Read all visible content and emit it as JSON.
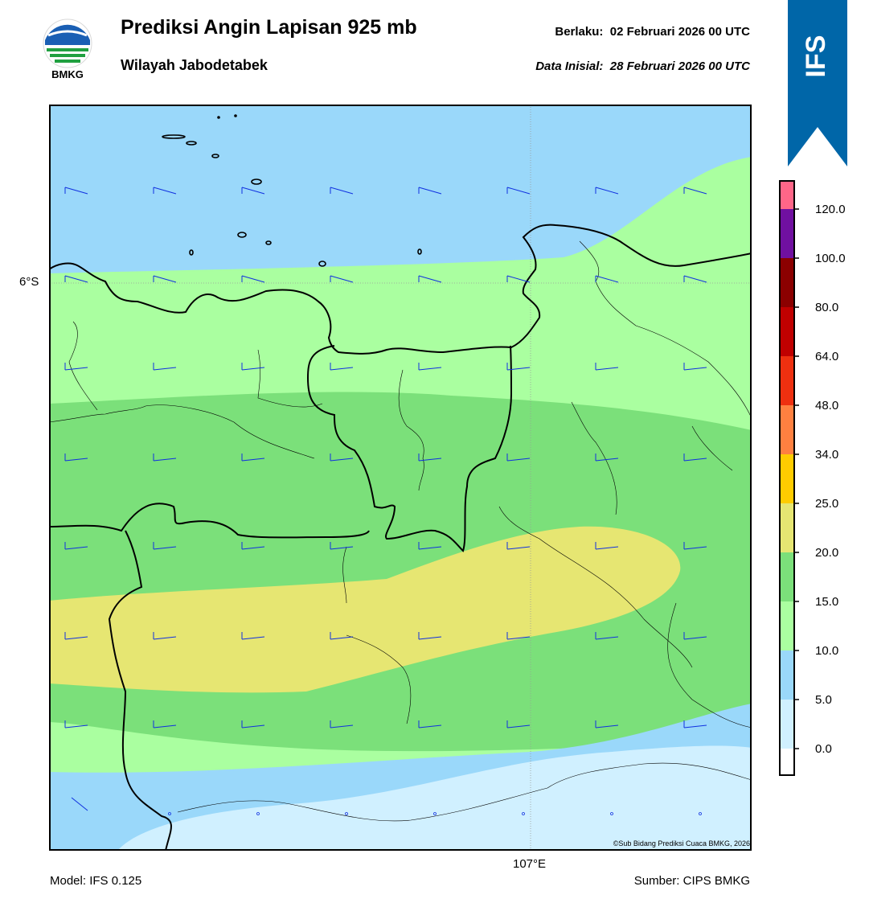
{
  "header": {
    "logo_text": "BMKG",
    "title": "Prediksi Angin Lapisan 925 mb",
    "subtitle": "Wilayah Jabodetabek",
    "valid_label": "Berlaku:",
    "valid_value": "02 Februari 2026 00 UTC",
    "initial_label": "Data Inisial:",
    "initial_value": "28 Februari 2026 00 UTC",
    "banner_text": "IFS"
  },
  "map": {
    "lat_label": "6°S",
    "lon_label": "107°E",
    "copyright": "©Sub Bidang Prediksi Cuaca BMKG, 2026",
    "wind_barb_color": "#1030e0"
  },
  "footer": {
    "model": "Model: IFS 0.125",
    "source": "Sumber: CIPS BMKG"
  },
  "colorbar": {
    "tick_labels": [
      "0.0",
      "5.0",
      "10.0",
      "15.0",
      "20.0",
      "25.0",
      "34.0",
      "48.0",
      "64.0",
      "80.0",
      "100.0",
      "120.0"
    ],
    "colors": [
      "#ffffff",
      "#d0f0ff",
      "#9ad8fa",
      "#aaffa0",
      "#7be07a",
      "#e6e672",
      "#ffcc00",
      "#ff8040",
      "#ee3010",
      "#c00000",
      "#8b0000",
      "#7010a0",
      "#ff6688"
    ]
  },
  "colors": {
    "banner": "#0066a8",
    "light_blue": "#d0f0ff",
    "sky_blue": "#9ad8fa",
    "light_green": "#aaffa0",
    "green": "#7be07a",
    "yellow": "#e6e672"
  }
}
